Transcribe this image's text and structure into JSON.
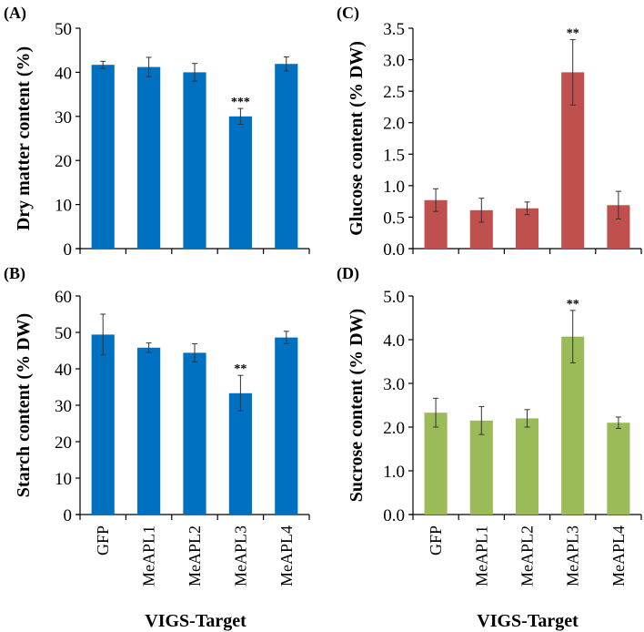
{
  "xlabel": "VIGS-Target",
  "colors": {
    "blue": "#0070C0",
    "red": "#C0504D",
    "green": "#9BBB59"
  },
  "chart_data": [
    {
      "panel": "(A)",
      "type": "bar",
      "ylabel": "Dry matter content (%)",
      "ylim": [
        0,
        50
      ],
      "yticks": [
        "0",
        "10",
        "20",
        "30",
        "40",
        "50"
      ],
      "tick_step": 10,
      "categories": [
        "GFP",
        "MeAPL1",
        "MeAPL2",
        "MeAPL3",
        "MeAPL4"
      ],
      "values": [
        41.7,
        41.2,
        40.0,
        30.0,
        41.9
      ],
      "errors": [
        0.8,
        2.2,
        2.0,
        1.8,
        1.6
      ],
      "annotations": [
        "",
        "",
        "",
        "***",
        ""
      ],
      "color": "#0070C0"
    },
    {
      "panel": "(C)",
      "type": "bar",
      "ylabel": "Glucose  content (% DW)",
      "ylim": [
        0,
        3.5
      ],
      "yticks": [
        "0.0",
        "0.5",
        "1.0",
        "1.5",
        "2.0",
        "2.5",
        "3.0",
        "3.5"
      ],
      "tick_step": 0.5,
      "categories": [
        "GFP",
        "MeAPL1",
        "MeAPL2",
        "MeAPL3",
        "MeAPL4"
      ],
      "values": [
        0.77,
        0.61,
        0.64,
        2.8,
        0.69
      ],
      "errors": [
        0.18,
        0.19,
        0.1,
        0.52,
        0.22
      ],
      "annotations": [
        "",
        "",
        "",
        "**",
        ""
      ],
      "color": "#C0504D"
    },
    {
      "panel": "(B)",
      "type": "bar",
      "ylabel": "Starch content (% DW)",
      "ylim": [
        0,
        60
      ],
      "yticks": [
        "0",
        "10",
        "20",
        "30",
        "40",
        "50",
        "60"
      ],
      "tick_step": 10,
      "categories": [
        "GFP",
        "MeAPL1",
        "MeAPL2",
        "MeAPL3",
        "MeAPL4"
      ],
      "values": [
        49.4,
        45.8,
        44.4,
        33.3,
        48.6
      ],
      "errors": [
        5.6,
        1.3,
        2.5,
        4.9,
        1.7
      ],
      "annotations": [
        "",
        "",
        "",
        "**",
        ""
      ],
      "color": "#0070C0"
    },
    {
      "panel": "(D)",
      "type": "bar",
      "ylabel": "Sucrose content (% DW)",
      "ylim": [
        0,
        5
      ],
      "yticks": [
        "0.0",
        "1.0",
        "2.0",
        "3.0",
        "4.0",
        "5.0"
      ],
      "tick_step": 1,
      "categories": [
        "GFP",
        "MeAPL1",
        "MeAPL2",
        "MeAPL3",
        "MeAPL4"
      ],
      "values": [
        2.33,
        2.15,
        2.2,
        4.07,
        2.1
      ],
      "errors": [
        0.33,
        0.32,
        0.2,
        0.6,
        0.13
      ],
      "annotations": [
        "",
        "",
        "",
        "**",
        ""
      ],
      "color": "#9BBB59"
    }
  ]
}
